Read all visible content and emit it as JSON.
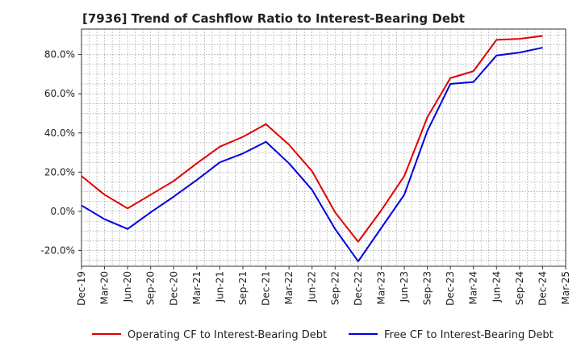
{
  "chart_data": {
    "type": "line",
    "title": "[7936]  Trend of Cashflow Ratio to Interest-Bearing Debt",
    "xlabel": "",
    "ylabel": "",
    "x_ticks": [
      "Dec-19",
      "Mar-20",
      "Jun-20",
      "Sep-20",
      "Dec-20",
      "Mar-21",
      "Jun-21",
      "Sep-21",
      "Dec-21",
      "Mar-22",
      "Jun-22",
      "Sep-22",
      "Dec-22",
      "Mar-23",
      "Jun-23",
      "Sep-23",
      "Dec-23",
      "Mar-24",
      "Jun-24",
      "Sep-24",
      "Dec-24",
      "Mar-25"
    ],
    "y_ticks": [
      "-20.0%",
      "0.0%",
      "20.0%",
      "40.0%",
      "60.0%",
      "80.0%"
    ],
    "ylim": [
      -28,
      93
    ],
    "grid": true,
    "legend_position": "bottom",
    "x": [
      "Dec-19",
      "Mar-20",
      "Jun-20",
      "Sep-20",
      "Dec-20",
      "Mar-21",
      "Jun-21",
      "Sep-21",
      "Dec-21",
      "Mar-22",
      "Jun-22",
      "Sep-22",
      "Dec-22",
      "Mar-23",
      "Jun-23",
      "Sep-23",
      "Dec-23",
      "Mar-24",
      "Jun-24",
      "Sep-24",
      "Dec-24"
    ],
    "series": [
      {
        "name": "Operating CF to Interest-Bearing Debt",
        "color": "#e00000",
        "values": [
          18.0,
          8.5,
          1.5,
          8.5,
          15.5,
          24.5,
          33.0,
          38.0,
          44.5,
          34.0,
          20.5,
          -0.5,
          -15.5,
          0.5,
          18.0,
          48.0,
          68.0,
          71.5,
          87.5,
          88.0,
          89.5
        ]
      },
      {
        "name": "Free CF to Interest-Bearing Debt",
        "color": "#0000e0",
        "values": [
          3.0,
          -4.0,
          -9.0,
          -0.5,
          7.5,
          16.0,
          25.0,
          29.5,
          35.5,
          24.5,
          11.0,
          -9.0,
          -25.5,
          -8.5,
          8.5,
          41.0,
          65.0,
          66.0,
          79.5,
          81.0,
          83.5
        ]
      }
    ]
  }
}
